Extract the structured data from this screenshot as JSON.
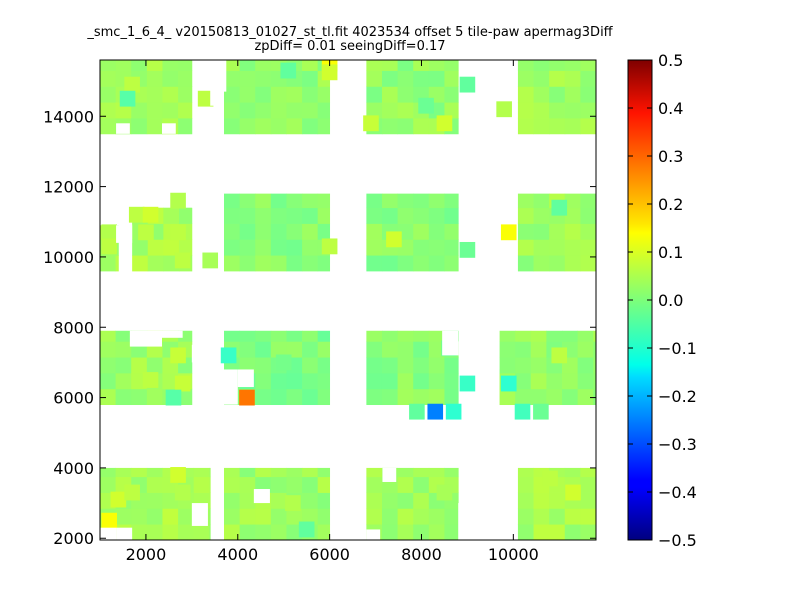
{
  "chart_data": {
    "type": "heatmap",
    "title": "_smc_1_6_4_ v20150813_01027_st_tl.fit 4023534 offset 5 tile-paw apermag3Diff",
    "subtitle": "zpDiff= 0.01 seeingDiff=0.17",
    "xlabel": "",
    "ylabel": "",
    "xlim": [
      1000,
      11800
    ],
    "ylim": [
      1950,
      15600
    ],
    "x_ticks": [
      2000,
      4000,
      6000,
      8000,
      10000
    ],
    "y_ticks": [
      2000,
      4000,
      6000,
      8000,
      10000,
      12000,
      14000
    ],
    "colorbar": {
      "colormap": "jet",
      "range": [
        -0.5,
        0.5
      ],
      "ticks": [
        "0.5",
        "0.4",
        "0.3",
        "0.2",
        "0.1",
        "0.0",
        "−0.1",
        "−0.2",
        "−0.3",
        "−0.4",
        "−0.5"
      ]
    },
    "cell_size": [
      340,
      450
    ],
    "baseline_value": 0.03,
    "regions": [
      {
        "x": [
          1000,
          3000
        ],
        "y": [
          13500,
          15600
        ],
        "value": 0.03
      },
      {
        "x": [
          3700,
          6000
        ],
        "y": [
          13500,
          15600
        ],
        "value": 0.02
      },
      {
        "x": [
          6800,
          8800
        ],
        "y": [
          13500,
          15600
        ],
        "value": 0.02
      },
      {
        "x": [
          10100,
          11800
        ],
        "y": [
          13500,
          15600
        ],
        "value": 0.03
      },
      {
        "x": [
          1000,
          1400
        ],
        "y": [
          9600,
          10900
        ],
        "value": 0.04
      },
      {
        "x": [
          1700,
          3000
        ],
        "y": [
          9600,
          11400
        ],
        "value": 0.04
      },
      {
        "x": [
          3700,
          6000
        ],
        "y": [
          9600,
          11800
        ],
        "value": 0.01
      },
      {
        "x": [
          6800,
          8800
        ],
        "y": [
          9600,
          11800
        ],
        "value": 0.01
      },
      {
        "x": [
          10100,
          11800
        ],
        "y": [
          9600,
          11800
        ],
        "value": 0.03
      },
      {
        "x": [
          1000,
          3000
        ],
        "y": [
          5800,
          7900
        ],
        "value": 0.03
      },
      {
        "x": [
          3700,
          6000
        ],
        "y": [
          5800,
          7900
        ],
        "value": 0.0
      },
      {
        "x": [
          6800,
          8800
        ],
        "y": [
          5800,
          7900
        ],
        "value": 0.01
      },
      {
        "x": [
          9700,
          11800
        ],
        "y": [
          5800,
          7900
        ],
        "value": 0.02
      },
      {
        "x": [
          1000,
          3400
        ],
        "y": [
          1950,
          4000
        ],
        "value": 0.04
      },
      {
        "x": [
          3700,
          6000
        ],
        "y": [
          1950,
          4000
        ],
        "value": 0.03
      },
      {
        "x": [
          6800,
          8800
        ],
        "y": [
          1950,
          4000
        ],
        "value": 0.03
      },
      {
        "x": [
          10100,
          11800
        ],
        "y": [
          1950,
          4000
        ],
        "value": 0.04
      }
    ],
    "cells": [
      {
        "x": 6000,
        "y": 15500,
        "value": 0.12
      },
      {
        "x": 6000,
        "y": 15250,
        "value": 0.08
      },
      {
        "x": 5100,
        "y": 15300,
        "value": -0.03
      },
      {
        "x": 1700,
        "y": 14900,
        "value": 0.06
      },
      {
        "x": 1600,
        "y": 14500,
        "value": -0.04
      },
      {
        "x": 3300,
        "y": 14500,
        "value": 0.06
      },
      {
        "x": 9000,
        "y": 14900,
        "value": -0.03
      },
      {
        "x": 8100,
        "y": 14300,
        "value": -0.02
      },
      {
        "x": 8500,
        "y": 13800,
        "value": 0.08
      },
      {
        "x": 6900,
        "y": 13800,
        "value": 0.07
      },
      {
        "x": 9800,
        "y": 14200,
        "value": 0.05
      },
      {
        "x": 2700,
        "y": 11600,
        "value": 0.05
      },
      {
        "x": 1800,
        "y": 11200,
        "value": 0.06
      },
      {
        "x": 2100,
        "y": 11200,
        "value": 0.08
      },
      {
        "x": 2700,
        "y": 10700,
        "value": 0.06
      },
      {
        "x": 2000,
        "y": 10700,
        "value": 0.06
      },
      {
        "x": 1200,
        "y": 10700,
        "value": 0.05
      },
      {
        "x": 1200,
        "y": 10300,
        "value": 0.06
      },
      {
        "x": 3400,
        "y": 9900,
        "value": 0.04
      },
      {
        "x": 2800,
        "y": 9900,
        "value": 0.06
      },
      {
        "x": 6000,
        "y": 10300,
        "value": 0.06
      },
      {
        "x": 7400,
        "y": 10500,
        "value": 0.08
      },
      {
        "x": 9000,
        "y": 10200,
        "value": -0.02
      },
      {
        "x": 9900,
        "y": 10700,
        "value": 0.12
      },
      {
        "x": 11000,
        "y": 11400,
        "value": -0.03
      },
      {
        "x": 2700,
        "y": 7200,
        "value": 0.07
      },
      {
        "x": 2100,
        "y": 6500,
        "value": 0.06
      },
      {
        "x": 2800,
        "y": 6400,
        "value": 0.07
      },
      {
        "x": 2600,
        "y": 6000,
        "value": -0.04
      },
      {
        "x": 3800,
        "y": 7200,
        "value": -0.07
      },
      {
        "x": 4200,
        "y": 6000,
        "value": 0.26
      },
      {
        "x": 5000,
        "y": 7000,
        "value": -0.01
      },
      {
        "x": 8600,
        "y": 7400,
        "value": -0.02
      },
      {
        "x": 8300,
        "y": 5600,
        "value": -0.25
      },
      {
        "x": 8700,
        "y": 5600,
        "value": -0.08
      },
      {
        "x": 7900,
        "y": 5600,
        "value": -0.03
      },
      {
        "x": 9000,
        "y": 6400,
        "value": -0.07
      },
      {
        "x": 9900,
        "y": 6400,
        "value": -0.08
      },
      {
        "x": 10200,
        "y": 5600,
        "value": -0.06
      },
      {
        "x": 10600,
        "y": 5600,
        "value": -0.02
      },
      {
        "x": 11000,
        "y": 7200,
        "value": 0.06
      },
      {
        "x": 1200,
        "y": 2500,
        "value": 0.12
      },
      {
        "x": 1400,
        "y": 3100,
        "value": 0.08
      },
      {
        "x": 1700,
        "y": 3300,
        "value": 0.06
      },
      {
        "x": 2800,
        "y": 3300,
        "value": 0.05
      },
      {
        "x": 2700,
        "y": 3800,
        "value": 0.08
      },
      {
        "x": 5500,
        "y": 2250,
        "value": -0.03
      },
      {
        "x": 5200,
        "y": 3000,
        "value": 0.05
      },
      {
        "x": 8500,
        "y": 3300,
        "value": 0.04
      },
      {
        "x": 11300,
        "y": 3300,
        "value": 0.08
      },
      {
        "x": 10800,
        "y": 3700,
        "value": 0.06
      }
    ],
    "holes": [
      {
        "x": [
          1350,
          1650
        ],
        "y": [
          13500,
          13800
        ]
      },
      {
        "x": [
          2350,
          2650
        ],
        "y": [
          13500,
          13800
        ]
      },
      {
        "x": [
          3400,
          3700
        ],
        "y": [
          14300,
          15600
        ]
      },
      {
        "x": [
          3650,
          3750
        ],
        "y": [
          14700,
          15600
        ]
      },
      {
        "x": [
          1350,
          1700
        ],
        "y": [
          10400,
          10900
        ]
      },
      {
        "x": [
          3000,
          3350
        ],
        "y": [
          11400,
          11900
        ]
      },
      {
        "x": [
          1650,
          2350
        ],
        "y": [
          7450,
          7900
        ]
      },
      {
        "x": [
          2350,
          2800
        ],
        "y": [
          7700,
          7900
        ]
      },
      {
        "x": [
          3000,
          3400
        ],
        "y": [
          7000,
          7500
        ]
      },
      {
        "x": [
          3700,
          4000
        ],
        "y": [
          5800,
          6800
        ]
      },
      {
        "x": [
          4000,
          4350
        ],
        "y": [
          6300,
          6800
        ]
      },
      {
        "x": [
          8450,
          8800
        ],
        "y": [
          7200,
          7900
        ]
      },
      {
        "x": [
          8800,
          9100
        ],
        "y": [
          7200,
          7600
        ]
      },
      {
        "x": [
          9400,
          9700
        ],
        "y": [
          6800,
          7900
        ]
      },
      {
        "x": [
          4350,
          4700
        ],
        "y": [
          3000,
          3400
        ]
      },
      {
        "x": [
          7150,
          7450
        ],
        "y": [
          3600,
          4000
        ]
      },
      {
        "x": [
          8800,
          9100
        ],
        "y": [
          1950,
          3000
        ]
      },
      {
        "x": [
          6800,
          7100
        ],
        "y": [
          1950,
          2250
        ]
      },
      {
        "x": [
          3000,
          3350
        ],
        "y": [
          2350,
          3000
        ]
      },
      {
        "x": [
          1000,
          1350
        ],
        "y": [
          1950,
          2300
        ]
      },
      {
        "x": [
          1350,
          1700
        ],
        "y": [
          1950,
          2300
        ]
      }
    ]
  }
}
